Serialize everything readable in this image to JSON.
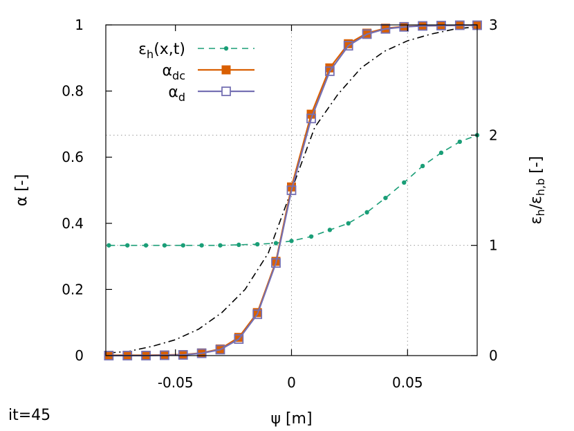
{
  "chart_data": {
    "type": "line",
    "xlabel": "ψ [m]",
    "ylabel": "α [-]",
    "y2label_parts": [
      "ε",
      "h",
      "/ε",
      "h,b",
      " [-]"
    ],
    "xlim": [
      -0.08,
      0.08
    ],
    "ylim": [
      0,
      1
    ],
    "y2lim": [
      0,
      3
    ],
    "xticks": [
      -0.05,
      0,
      0.05
    ],
    "xtick_labels": [
      "-0.05",
      "0",
      "0.05"
    ],
    "yticks": [
      0,
      0.2,
      0.4,
      0.6,
      0.8,
      1
    ],
    "ytick_labels": [
      "0",
      "0.2",
      "0.4",
      "0.6",
      "0.8",
      "1"
    ],
    "y2ticks": [
      0,
      1,
      2,
      3
    ],
    "y2tick_labels": [
      "0",
      "1",
      "2",
      "3"
    ],
    "grid": "dotted, at x=0, x=0.05 and y2=1, y2=2",
    "legend_position": "top-left",
    "series": [
      {
        "label_base": "ε",
        "label_sub": "h",
        "label_rest": "(x,t)",
        "axis": "y2",
        "color": "#1a9e77",
        "line": "dashed",
        "marker": "small-dot",
        "x": [
          -0.0787,
          -0.0707,
          -0.0627,
          -0.0547,
          -0.0467,
          -0.0387,
          -0.0307,
          -0.0227,
          -0.0147,
          -0.0067,
          0.0,
          0.0085,
          0.0165,
          0.0245,
          0.0325,
          0.0405,
          0.0485,
          0.0565,
          0.0645,
          0.0725,
          0.0805
        ],
        "values": [
          1.0,
          1.0,
          1.0,
          1.0,
          1.0,
          1.0,
          1.0,
          1.005,
          1.01,
          1.02,
          1.04,
          1.08,
          1.14,
          1.2,
          1.3,
          1.43,
          1.57,
          1.72,
          1.84,
          1.94,
          2.0
        ]
      },
      {
        "label_base": "α",
        "label_sub": "dc",
        "label_rest": "",
        "axis": "y",
        "color": "#d95f02",
        "line": "solid",
        "marker": "filled-square",
        "x": [
          -0.0787,
          -0.0707,
          -0.0627,
          -0.0547,
          -0.0467,
          -0.0387,
          -0.0307,
          -0.0227,
          -0.0147,
          -0.0067,
          0.0,
          0.0085,
          0.0165,
          0.0245,
          0.0325,
          0.0405,
          0.0485,
          0.0565,
          0.0645,
          0.0725,
          0.0805
        ],
        "values": [
          0.001,
          0.001,
          0.001,
          0.002,
          0.003,
          0.008,
          0.02,
          0.055,
          0.13,
          0.285,
          0.51,
          0.73,
          0.87,
          0.943,
          0.975,
          0.99,
          0.995,
          0.997,
          0.998,
          0.999,
          0.999
        ]
      },
      {
        "label_base": "α",
        "label_sub": "d",
        "label_rest": "",
        "axis": "y",
        "color": "#7570b3",
        "line": "solid",
        "marker": "open-square",
        "x": [
          -0.0787,
          -0.0707,
          -0.0627,
          -0.0547,
          -0.0467,
          -0.0387,
          -0.0307,
          -0.0227,
          -0.0147,
          -0.0067,
          0.0,
          0.0085,
          0.0165,
          0.0245,
          0.0325,
          0.0405,
          0.0485,
          0.0565,
          0.0645,
          0.0725,
          0.0805
        ],
        "values": [
          0.0,
          0.0,
          0.0,
          0.001,
          0.002,
          0.007,
          0.018,
          0.05,
          0.125,
          0.28,
          0.5,
          0.717,
          0.86,
          0.937,
          0.972,
          0.988,
          0.994,
          0.997,
          0.998,
          0.999,
          0.999
        ]
      },
      {
        "label_base": "",
        "label_sub": "",
        "label_rest": "",
        "axis": "y",
        "color": "#000000",
        "line": "dash-dot",
        "marker": "none",
        "x": [
          -0.0787,
          -0.07,
          -0.06,
          -0.05,
          -0.04,
          -0.03,
          -0.02,
          -0.01,
          0.0,
          0.01,
          0.02,
          0.03,
          0.04,
          0.05,
          0.06,
          0.07,
          0.0805
        ],
        "values": [
          0.008,
          0.013,
          0.028,
          0.048,
          0.08,
          0.13,
          0.2,
          0.31,
          0.5,
          0.69,
          0.79,
          0.87,
          0.92,
          0.952,
          0.972,
          0.987,
          0.995
        ]
      }
    ]
  },
  "annotation": "it=45"
}
